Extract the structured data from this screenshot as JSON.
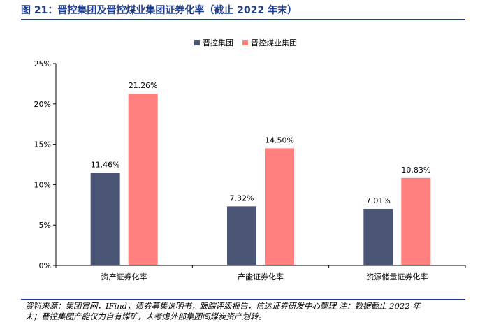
{
  "header": {
    "title": "图 21：晋控集团及晋控煤业集团证券化率（截止 2022 年末）"
  },
  "footer": {
    "source_line1": "资料来源：集团官网，IFind，债券募集说明书，跟踪评级报告，信达证券研发中心整理 注：数据截止 2022 年",
    "source_line2": "末；晋控集团产能仅为自有煤矿，未考虑外部集团间煤炭资产划转。"
  },
  "colors": {
    "series1": "#4a5474",
    "series2": "#ff7f7f"
  },
  "chart_data": {
    "type": "bar",
    "categories": [
      "资产证券化率",
      "产能证券化率",
      "资源储量证券化率"
    ],
    "series": [
      {
        "name": "晋控集团",
        "values": [
          11.46,
          7.32,
          7.01
        ],
        "labels": [
          "11.46%",
          "7.32%",
          "7.01%"
        ]
      },
      {
        "name": "晋控煤业集团",
        "values": [
          21.26,
          14.5,
          10.83
        ],
        "labels": [
          "21.26%",
          "14.50%",
          "10.83%"
        ]
      }
    ],
    "ylim": [
      0,
      25
    ],
    "yticks": [
      0,
      5,
      10,
      15,
      20,
      25
    ],
    "ytick_labels": [
      "0%",
      "5%",
      "10%",
      "15%",
      "20%",
      "25%"
    ],
    "legend_position": "top-center",
    "grid": false
  }
}
